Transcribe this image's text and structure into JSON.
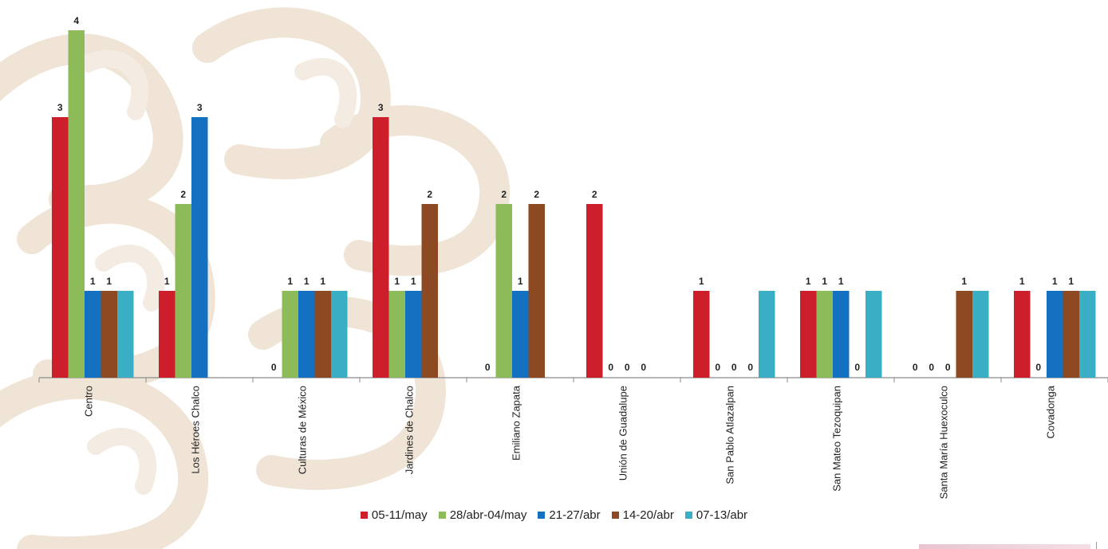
{
  "chart_data": {
    "type": "bar",
    "categories": [
      "Centro",
      "Los Héroes Chalco",
      "Culturas de México",
      "Jardines de Chalco",
      "Emiliano Zapata",
      "Unión de Guadalupe",
      "San Pablo Atlazalpan",
      "San Mateo Tezoquipan",
      "Santa María Huexoculco",
      "Covadonga"
    ],
    "series": [
      {
        "name": "05-11/may",
        "color": "#cc1f2b",
        "values": [
          3,
          1,
          0,
          3,
          0,
          2,
          1,
          1,
          0,
          1
        ]
      },
      {
        "name": "28/abr-04/may",
        "color": "#8dbb5a",
        "values": [
          4,
          2,
          1,
          1,
          2,
          0,
          0,
          1,
          0,
          0
        ]
      },
      {
        "name": "21-27/abr",
        "color": "#1470c0",
        "values": [
          1,
          3,
          1,
          1,
          1,
          0,
          0,
          1,
          0,
          1
        ]
      },
      {
        "name": "14-20/abr",
        "color": "#8d4a22",
        "values": [
          1,
          null,
          1,
          2,
          2,
          0,
          0,
          0,
          1,
          1
        ]
      },
      {
        "name": "07-13/abr",
        "color": "#3aaec4",
        "values": [
          null,
          null,
          null,
          null,
          null,
          null,
          null,
          null,
          null,
          null
        ]
      }
    ],
    "bar_only_series": {
      "07-13/abr": [
        1,
        null,
        1,
        null,
        null,
        null,
        1,
        1,
        1,
        1
      ]
    },
    "ylim": [
      0,
      4
    ],
    "xlabel": "",
    "ylabel": "",
    "title": "",
    "legend_position": "bottom",
    "grid": false
  },
  "legend": {
    "items": [
      {
        "label": "05-11/may",
        "color": "#cc1f2b"
      },
      {
        "label": "28/abr-04/may",
        "color": "#8dbb5a"
      },
      {
        "label": "21-27/abr",
        "color": "#1470c0"
      },
      {
        "label": "14-20/abr",
        "color": "#8d4a22"
      },
      {
        "label": "07-13/abr",
        "color": "#3aaec4"
      }
    ]
  }
}
